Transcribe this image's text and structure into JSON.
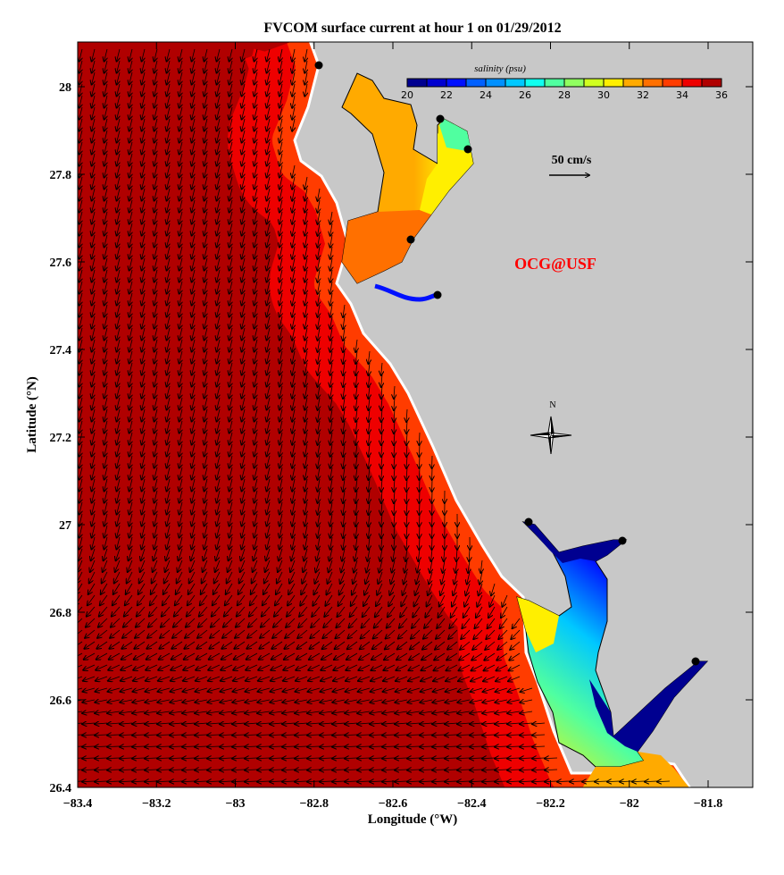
{
  "title": "FVCOM surface current at hour 1 on 01/29/2012",
  "xaxis": {
    "label": "Longitude (°W)",
    "ticks": [
      "−83.4",
      "−83.2",
      "−83",
      "−82.8",
      "−82.6",
      "−82.4",
      "−82.2",
      "−82",
      "−81.8"
    ],
    "range": [
      -83.4,
      -81.7
    ]
  },
  "yaxis": {
    "label": "Latitude (°N)",
    "ticks": [
      "26.4",
      "26.6",
      "26.8",
      "27",
      "27.2",
      "27.4",
      "27.6",
      "27.8",
      "28"
    ],
    "range": [
      26.4,
      28.1
    ]
  },
  "colorbar": {
    "label": "salinity (psu)",
    "ticks": [
      "20",
      "22",
      "24",
      "26",
      "28",
      "30",
      "32",
      "34",
      "36"
    ],
    "colors": [
      "#000090",
      "#0000d0",
      "#0010ff",
      "#0060ff",
      "#0090ff",
      "#00c8ff",
      "#10ffef",
      "#50ffa0",
      "#90ff60",
      "#d0ff20",
      "#ffef00",
      "#ffaa00",
      "#ff7000",
      "#ff3c00",
      "#ee0000",
      "#b00000"
    ]
  },
  "scale_arrow": {
    "label": "50 cm/s"
  },
  "watermark": {
    "label": "OCG@USF",
    "color": "#ff0000"
  },
  "compass": {
    "label": "N"
  },
  "colors": {
    "land": "#c8c8c8",
    "open_water": "#b00000",
    "coastal_water": "#ee0000",
    "nearshore_water": "#ff3c00",
    "estuary": "#ffaa00",
    "river": "#000090"
  }
}
